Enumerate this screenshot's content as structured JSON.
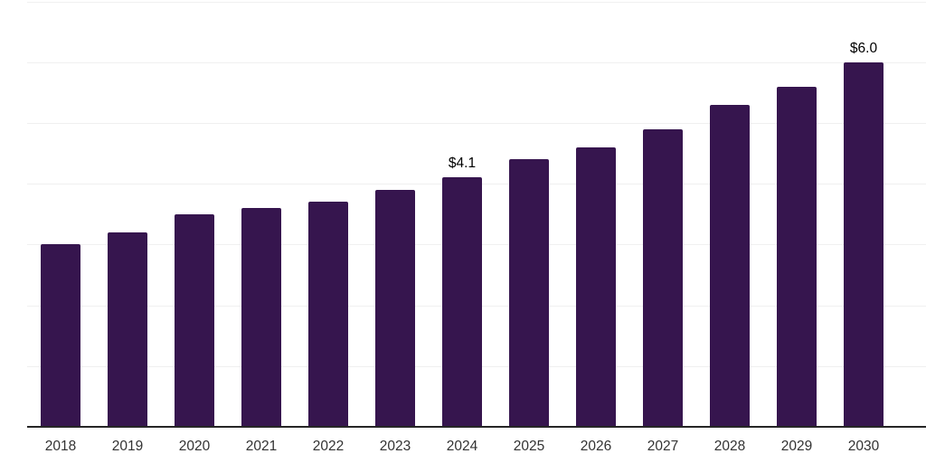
{
  "chart_data": {
    "type": "bar",
    "title": "",
    "xlabel": "",
    "ylabel": "",
    "categories": [
      "2018",
      "2019",
      "2020",
      "2021",
      "2022",
      "2023",
      "2024",
      "2025",
      "2026",
      "2027",
      "2028",
      "2029",
      "2030"
    ],
    "values": [
      3.0,
      3.2,
      3.5,
      3.6,
      3.7,
      3.9,
      4.1,
      4.4,
      4.6,
      4.9,
      5.3,
      5.6,
      6.0
    ],
    "point_labels": [
      "",
      "",
      "",
      "",
      "",
      "",
      "$4.1",
      "",
      "",
      "",
      "",
      "",
      "$6.0"
    ],
    "ylim": [
      0,
      7
    ],
    "grid_step": 1,
    "grid": "horizontal",
    "legend": "none",
    "bar_color": "#36154e",
    "value_label_color": "#000000",
    "tick_label_color": "#333333",
    "gridline_color": "#f0f0f0",
    "axis_line_color": "#262626",
    "background_color": "#ffffff"
  }
}
